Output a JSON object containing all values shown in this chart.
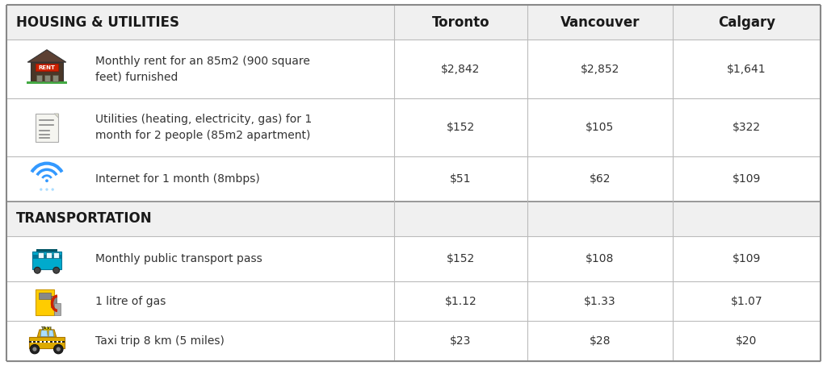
{
  "title": "HOUSING & UTILITIES",
  "section2_title": "TRANSPORTATION",
  "col_headers": [
    "Toronto",
    "Vancouver",
    "Calgary"
  ],
  "rows_section1": [
    {
      "description": "Monthly rent for an 85m2 (900 square\nfeet) furnished",
      "toronto": "$2,842",
      "vancouver": "$2,852",
      "calgary": "$1,641"
    },
    {
      "description": "Utilities (heating, electricity, gas) for 1\nmonth for 2 people (85m2 apartment)",
      "toronto": "$152",
      "vancouver": "$105",
      "calgary": "$322"
    },
    {
      "description": "Internet for 1 month (8mbps)",
      "toronto": "$51",
      "vancouver": "$62",
      "calgary": "$109"
    }
  ],
  "rows_section2": [
    {
      "description": "Monthly public transport pass",
      "toronto": "$152",
      "vancouver": "$108",
      "calgary": "$109"
    },
    {
      "description": "1 litre of gas",
      "toronto": "$1.12",
      "vancouver": "$1.33",
      "calgary": "$1.07"
    },
    {
      "description": "Taxi trip 8 km (5 miles)",
      "toronto": "$23",
      "vancouver": "$28",
      "calgary": "$20"
    }
  ],
  "figsize": [
    10.24,
    4.54
  ],
  "dpi": 100,
  "font_size_header": 12,
  "font_size_section": 12,
  "font_size_body": 10,
  "font_size_value": 10,
  "header_bg": "#f0f0f0",
  "row_bg": "#ffffff",
  "border_color": "#bbbbbb",
  "text_color": "#1a1a1a",
  "value_color": "#333333"
}
